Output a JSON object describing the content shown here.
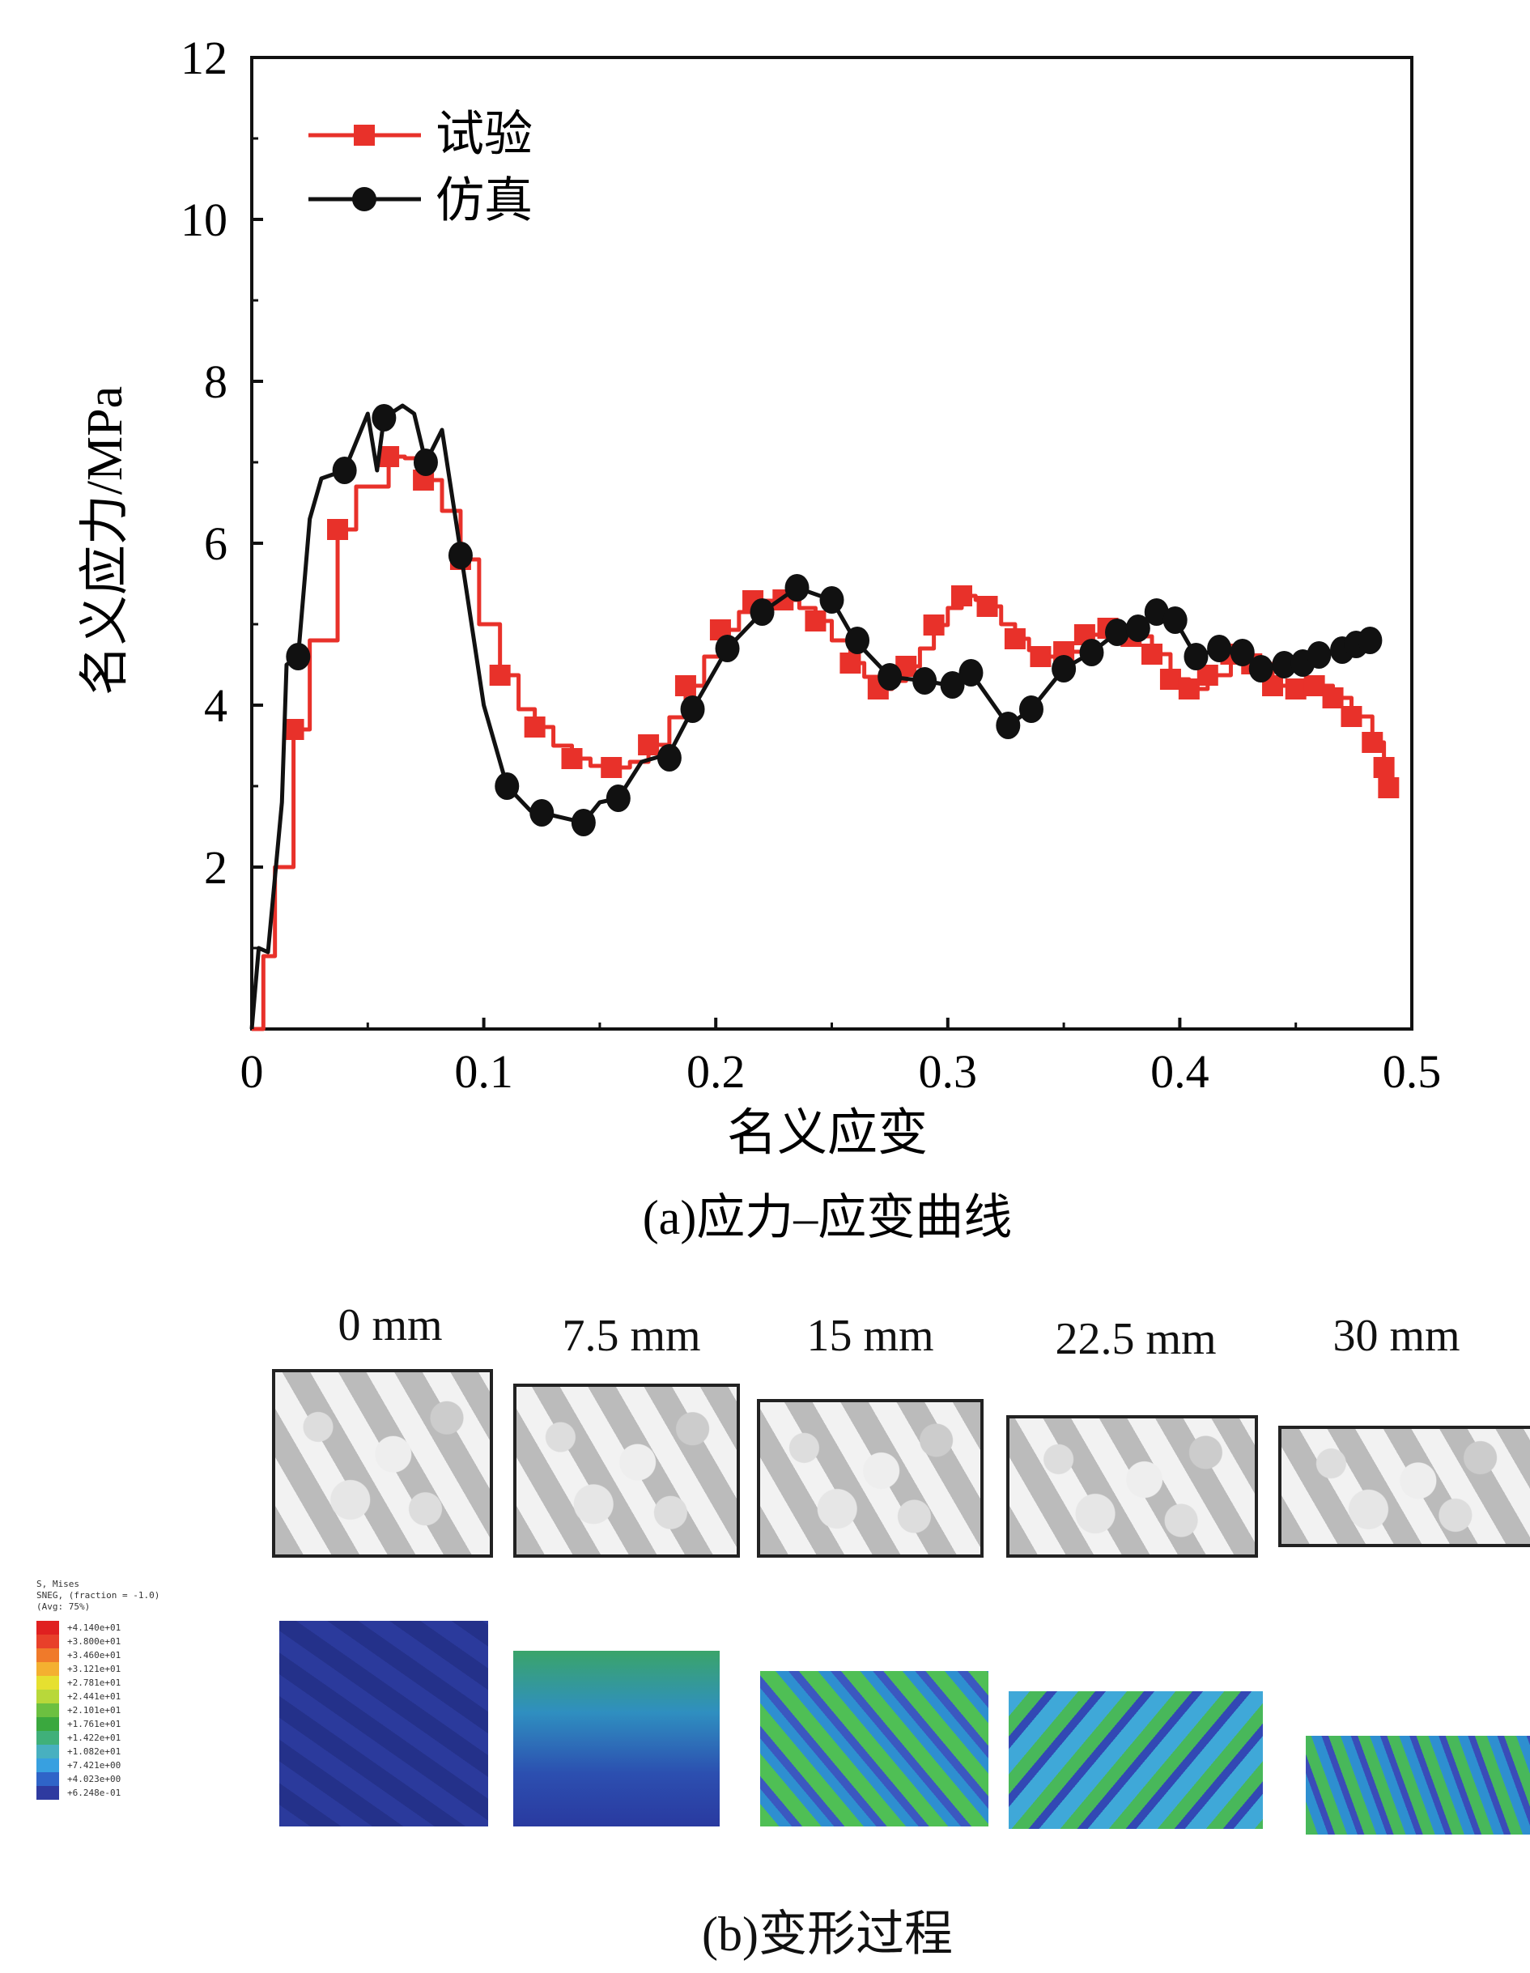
{
  "chart_data": {
    "type": "line",
    "title": "",
    "xlabel": "名义应变",
    "ylabel": "名义应力/MPa",
    "xlim": [
      0,
      0.5
    ],
    "ylim": [
      0,
      12
    ],
    "xticks": [
      "0",
      "0.1",
      "0.2",
      "0.3",
      "0.4",
      "0.5"
    ],
    "xtick_values": [
      0,
      0.1,
      0.2,
      0.3,
      0.4,
      0.5
    ],
    "yticks": [
      "2",
      "4",
      "6",
      "8",
      "10",
      "12"
    ],
    "ytick_values": [
      2,
      4,
      6,
      8,
      10,
      12
    ],
    "legend_position": "top-left",
    "series": [
      {
        "name": "试验",
        "color": "#e8312a",
        "marker": "square",
        "points": [
          [
            0,
            0
          ],
          [
            0.005,
            0.9
          ],
          [
            0.01,
            2.0
          ],
          [
            0.018,
            3.7
          ],
          [
            0.025,
            4.8
          ],
          [
            0.037,
            6.17
          ],
          [
            0.045,
            6.7
          ],
          [
            0.059,
            7.07
          ],
          [
            0.066,
            7.05
          ],
          [
            0.074,
            6.78
          ],
          [
            0.082,
            6.4
          ],
          [
            0.09,
            5.8
          ],
          [
            0.098,
            5.0
          ],
          [
            0.107,
            4.37
          ],
          [
            0.115,
            3.95
          ],
          [
            0.122,
            3.73
          ],
          [
            0.13,
            3.5
          ],
          [
            0.138,
            3.34
          ],
          [
            0.146,
            3.25
          ],
          [
            0.155,
            3.23
          ],
          [
            0.163,
            3.3
          ],
          [
            0.171,
            3.51
          ],
          [
            0.18,
            3.85
          ],
          [
            0.187,
            4.24
          ],
          [
            0.195,
            4.6
          ],
          [
            0.202,
            4.93
          ],
          [
            0.21,
            5.15
          ],
          [
            0.216,
            5.29
          ],
          [
            0.229,
            5.3
          ],
          [
            0.236,
            5.2
          ],
          [
            0.243,
            5.04
          ],
          [
            0.25,
            4.8
          ],
          [
            0.258,
            4.52
          ],
          [
            0.264,
            4.35
          ],
          [
            0.27,
            4.2
          ],
          [
            0.276,
            4.3
          ],
          [
            0.282,
            4.48
          ],
          [
            0.288,
            4.7
          ],
          [
            0.294,
            4.99
          ],
          [
            0.3,
            5.2
          ],
          [
            0.306,
            5.35
          ],
          [
            0.312,
            5.3
          ],
          [
            0.317,
            5.22
          ],
          [
            0.323,
            5.0
          ],
          [
            0.329,
            4.82
          ],
          [
            0.335,
            4.68
          ],
          [
            0.34,
            4.6
          ],
          [
            0.35,
            4.66
          ],
          [
            0.359,
            4.87
          ],
          [
            0.369,
            4.95
          ],
          [
            0.379,
            4.85
          ],
          [
            0.388,
            4.63
          ],
          [
            0.396,
            4.32
          ],
          [
            0.404,
            4.2
          ],
          [
            0.412,
            4.37
          ],
          [
            0.422,
            4.63
          ],
          [
            0.431,
            4.51
          ],
          [
            0.44,
            4.24
          ],
          [
            0.45,
            4.2
          ],
          [
            0.458,
            4.24
          ],
          [
            0.466,
            4.09
          ],
          [
            0.474,
            3.86
          ],
          [
            0.483,
            3.54
          ],
          [
            0.488,
            3.23
          ],
          [
            0.49,
            2.98
          ]
        ],
        "markers": [
          [
            0.018,
            3.7
          ],
          [
            0.037,
            6.17
          ],
          [
            0.059,
            7.07
          ],
          [
            0.074,
            6.78
          ],
          [
            0.09,
            5.8
          ],
          [
            0.107,
            4.37
          ],
          [
            0.122,
            3.73
          ],
          [
            0.138,
            3.34
          ],
          [
            0.155,
            3.23
          ],
          [
            0.171,
            3.51
          ],
          [
            0.187,
            4.24
          ],
          [
            0.202,
            4.93
          ],
          [
            0.216,
            5.29
          ],
          [
            0.229,
            5.3
          ],
          [
            0.243,
            5.04
          ],
          [
            0.258,
            4.52
          ],
          [
            0.27,
            4.2
          ],
          [
            0.282,
            4.48
          ],
          [
            0.294,
            4.99
          ],
          [
            0.306,
            5.35
          ],
          [
            0.317,
            5.22
          ],
          [
            0.329,
            4.82
          ],
          [
            0.34,
            4.6
          ],
          [
            0.35,
            4.66
          ],
          [
            0.359,
            4.87
          ],
          [
            0.369,
            4.95
          ],
          [
            0.379,
            4.85
          ],
          [
            0.388,
            4.63
          ],
          [
            0.396,
            4.32
          ],
          [
            0.404,
            4.2
          ],
          [
            0.412,
            4.37
          ],
          [
            0.422,
            4.63
          ],
          [
            0.431,
            4.51
          ],
          [
            0.44,
            4.24
          ],
          [
            0.45,
            4.2
          ],
          [
            0.458,
            4.24
          ],
          [
            0.466,
            4.09
          ],
          [
            0.474,
            3.86
          ],
          [
            0.483,
            3.54
          ],
          [
            0.488,
            3.23
          ],
          [
            0.49,
            2.98
          ]
        ]
      },
      {
        "name": "仿真",
        "color": "#111111",
        "marker": "circle",
        "points": [
          [
            0,
            0
          ],
          [
            0.003,
            1.0
          ],
          [
            0.007,
            0.95
          ],
          [
            0.013,
            2.8
          ],
          [
            0.015,
            4.5
          ],
          [
            0.02,
            4.6
          ],
          [
            0.025,
            6.3
          ],
          [
            0.03,
            6.8
          ],
          [
            0.04,
            6.9
          ],
          [
            0.05,
            7.6
          ],
          [
            0.054,
            6.9
          ],
          [
            0.057,
            7.55
          ],
          [
            0.065,
            7.7
          ],
          [
            0.07,
            7.6
          ],
          [
            0.075,
            7.0
          ],
          [
            0.082,
            7.4
          ],
          [
            0.09,
            5.9
          ],
          [
            0.1,
            4.0
          ],
          [
            0.11,
            3.0
          ],
          [
            0.12,
            2.7
          ],
          [
            0.128,
            2.65
          ],
          [
            0.143,
            2.55
          ],
          [
            0.15,
            2.8
          ],
          [
            0.158,
            2.85
          ],
          [
            0.168,
            3.3
          ],
          [
            0.18,
            3.4
          ],
          [
            0.19,
            3.95
          ],
          [
            0.205,
            4.7
          ],
          [
            0.22,
            5.15
          ],
          [
            0.235,
            5.45
          ],
          [
            0.25,
            5.3
          ],
          [
            0.26,
            4.8
          ],
          [
            0.275,
            4.35
          ],
          [
            0.29,
            4.3
          ],
          [
            0.3,
            4.25
          ],
          [
            0.31,
            4.4
          ],
          [
            0.326,
            3.75
          ],
          [
            0.336,
            3.95
          ],
          [
            0.35,
            4.45
          ],
          [
            0.362,
            4.65
          ],
          [
            0.373,
            4.9
          ],
          [
            0.382,
            4.95
          ],
          [
            0.39,
            5.2
          ],
          [
            0.398,
            5.05
          ],
          [
            0.407,
            4.6
          ],
          [
            0.417,
            4.7
          ],
          [
            0.427,
            4.65
          ],
          [
            0.435,
            4.45
          ],
          [
            0.445,
            4.5
          ],
          [
            0.453,
            4.55
          ],
          [
            0.46,
            4.6
          ],
          [
            0.47,
            4.7
          ],
          [
            0.476,
            4.75
          ],
          [
            0.482,
            4.8
          ]
        ],
        "markers": [
          [
            0.02,
            4.6
          ],
          [
            0.04,
            6.9
          ],
          [
            0.057,
            7.55
          ],
          [
            0.075,
            7.0
          ],
          [
            0.09,
            5.85
          ],
          [
            0.11,
            3.0
          ],
          [
            0.125,
            2.67
          ],
          [
            0.143,
            2.55
          ],
          [
            0.158,
            2.85
          ],
          [
            0.18,
            3.35
          ],
          [
            0.19,
            3.95
          ],
          [
            0.205,
            4.7
          ],
          [
            0.22,
            5.15
          ],
          [
            0.235,
            5.45
          ],
          [
            0.25,
            5.3
          ],
          [
            0.261,
            4.8
          ],
          [
            0.275,
            4.35
          ],
          [
            0.29,
            4.3
          ],
          [
            0.302,
            4.25
          ],
          [
            0.31,
            4.4
          ],
          [
            0.326,
            3.75
          ],
          [
            0.336,
            3.95
          ],
          [
            0.35,
            4.45
          ],
          [
            0.362,
            4.65
          ],
          [
            0.373,
            4.9
          ],
          [
            0.382,
            4.95
          ],
          [
            0.39,
            5.15
          ],
          [
            0.398,
            5.05
          ],
          [
            0.407,
            4.6
          ],
          [
            0.417,
            4.7
          ],
          [
            0.427,
            4.65
          ],
          [
            0.435,
            4.45
          ],
          [
            0.445,
            4.5
          ],
          [
            0.453,
            4.52
          ],
          [
            0.46,
            4.62
          ],
          [
            0.47,
            4.68
          ],
          [
            0.476,
            4.75
          ],
          [
            0.482,
            4.8
          ]
        ]
      }
    ]
  },
  "captions": {
    "a": "(a)应力–应变曲线",
    "b": "(b)变形过程"
  },
  "deformation": {
    "labels": [
      "0 mm",
      "7.5 mm",
      "15 mm",
      "22.5 mm",
      "30 mm"
    ]
  },
  "colorbar": {
    "title_lines": [
      "S, Mises",
      "SNEG, (fraction = -1.0)",
      "(Avg: 75%)"
    ],
    "values": [
      "+4.140e+01",
      "+3.800e+01",
      "+3.460e+01",
      "+3.121e+01",
      "+2.781e+01",
      "+2.441e+01",
      "+2.101e+01",
      "+1.761e+01",
      "+1.422e+01",
      "+1.082e+01",
      "+7.421e+00",
      "+4.023e+00",
      "+6.248e-01"
    ],
    "colors": [
      "#e02020",
      "#e8402a",
      "#f07a2a",
      "#f4b030",
      "#e6e030",
      "#b8d83a",
      "#6cc040",
      "#3aa83e",
      "#40b07a",
      "#48b0c0",
      "#38a0e0",
      "#2f64c8",
      "#2e3aa0"
    ]
  }
}
